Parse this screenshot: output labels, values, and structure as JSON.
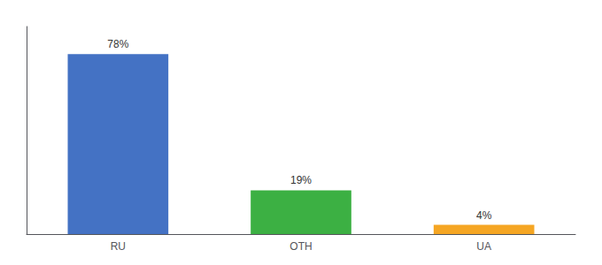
{
  "chart_data": {
    "type": "bar",
    "categories": [
      "RU",
      "OTH",
      "UA"
    ],
    "values": [
      78,
      19,
      4
    ],
    "value_labels": [
      "78%",
      "19%",
      "4%"
    ],
    "colors": [
      "#4472c4",
      "#3cb043",
      "#f5a623"
    ],
    "ylim": [
      0,
      90
    ],
    "data_labels": true,
    "tick_labels": "x",
    "grid": false
  }
}
